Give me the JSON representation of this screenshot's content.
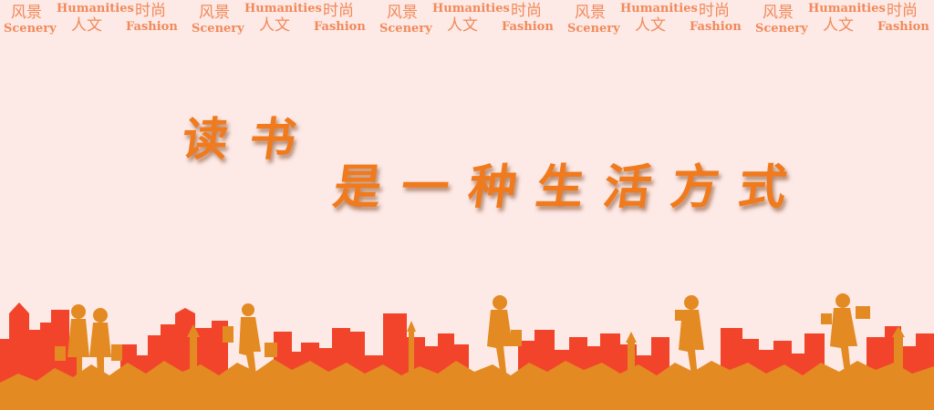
{
  "header": {
    "tiles": [
      {
        "scenery_cn": "风景",
        "humanities_en": "Humanities",
        "fashion_cn": "时尚",
        "scenery_en": "Scenery",
        "humanities_cn": "人文",
        "fashion_en": "Fashion"
      },
      {
        "scenery_cn": "风景",
        "humanities_en": "Humanities",
        "fashion_cn": "时尚",
        "scenery_en": "Scenery",
        "humanities_cn": "人文",
        "fashion_en": "Fashion"
      },
      {
        "scenery_cn": "风景",
        "humanities_en": "Humanities",
        "fashion_cn": "时尚",
        "scenery_en": "Scenery",
        "humanities_cn": "人文",
        "fashion_en": "Fashion"
      },
      {
        "scenery_cn": "风景",
        "humanities_en": "Humanities",
        "fashion_cn": "时尚",
        "scenery_en": "Scenery",
        "humanities_cn": "人文",
        "fashion_en": "Fashion"
      },
      {
        "scenery_cn": "风景",
        "humanities_en": "Humanities",
        "fashion_cn": "时尚",
        "scenery_en": "Scenery",
        "humanities_cn": "人文",
        "fashion_en": "Fashion"
      }
    ]
  },
  "slogan": {
    "line1": "读书",
    "line2": "是一种生活方式"
  },
  "colors": {
    "background": "#fde9e6",
    "header_text": "#f08a5a",
    "slogan_text": "#f07a1c",
    "skyline_red": "#f2442a",
    "skyline_orange": "#e38a22"
  }
}
